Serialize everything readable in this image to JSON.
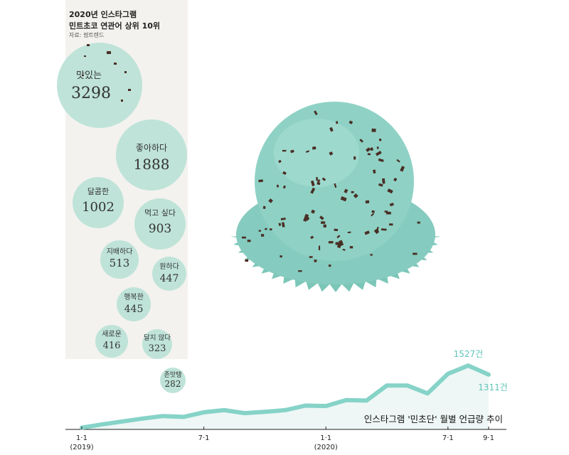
{
  "header": {
    "title_line1": "2020년 인스타그램",
    "title_line2": "민트초코 연관어 상위 10위",
    "source": "자료: 썸트렌드"
  },
  "colors": {
    "mint_bubble": "#bfe3d8",
    "mint_line": "#86d3c8",
    "mint_label": "#5fc4b8",
    "ice_cream": "#8fd2c5",
    "chip": "#4a2e25",
    "panel": "#f3f2ef"
  },
  "illustration": "mint-chocolate-chip-ice-cream-scoop",
  "bubble_chart": {
    "type": "bubble",
    "title": "2020년 인스타그램 민트초코 연관어 상위 10위",
    "items": [
      {
        "word": "맛있는",
        "value": "3298"
      },
      {
        "word": "좋아하다",
        "value": "1888"
      },
      {
        "word": "달콤한",
        "value": "1002"
      },
      {
        "word": "먹고 싶다",
        "value": "903"
      },
      {
        "word": "지배하다",
        "value": "513"
      },
      {
        "word": "원하다",
        "value": "447"
      },
      {
        "word": "행복한",
        "value": "445"
      },
      {
        "word": "새로운",
        "value": "416"
      },
      {
        "word": "달지 않다",
        "value": "323"
      },
      {
        "word": "존맛탱",
        "value": "282"
      }
    ]
  },
  "chart_data": {
    "type": "line",
    "title": "인스타그램 '민초단' 월별 언급량 추이",
    "x": [
      "2019-01",
      "2019-02",
      "2019-03",
      "2019-04",
      "2019-05",
      "2019-06",
      "2019-07",
      "2019-08",
      "2019-09",
      "2019-10",
      "2019-11",
      "2019-12",
      "2020-01",
      "2020-02",
      "2020-03",
      "2020-04",
      "2020-05",
      "2020-06",
      "2020-07",
      "2020-08",
      "2020-09"
    ],
    "values": [
      40,
      120,
      190,
      260,
      320,
      300,
      410,
      460,
      390,
      420,
      460,
      570,
      560,
      700,
      690,
      1050,
      1050,
      860,
      1330,
      1527,
      1311
    ],
    "tick_labels": [
      {
        "index": 0,
        "line1": "1·1",
        "line2": "(2019)"
      },
      {
        "index": 6,
        "line1": "7·1",
        "line2": ""
      },
      {
        "index": 12,
        "line1": "1·1",
        "line2": "(2020)"
      },
      {
        "index": 18,
        "line1": "7·1",
        "line2": ""
      },
      {
        "index": 20,
        "line1": "9·1",
        "line2": ""
      }
    ],
    "annotations": [
      {
        "index": 19,
        "text": "1527건"
      },
      {
        "index": 20,
        "text": "1311건"
      }
    ],
    "ylim": [
      0,
      1700
    ],
    "grid": false
  }
}
